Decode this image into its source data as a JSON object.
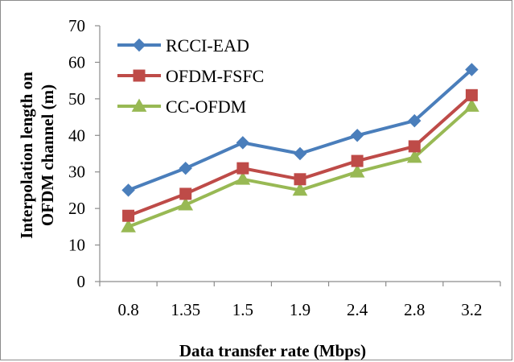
{
  "chart_data": {
    "type": "line",
    "title": "",
    "xlabel": "Data transfer rate (Mbps)",
    "ylabel_line1": "Interpolation length on",
    "ylabel_line2": "OFDM channel (m)",
    "categories": [
      "0.8",
      "1.35",
      "1.5",
      "1.9",
      "2.4",
      "2.8",
      "3.2"
    ],
    "ylim": [
      0,
      70
    ],
    "yticks": [
      0,
      10,
      20,
      30,
      40,
      50,
      60,
      70
    ],
    "grid": false,
    "legend_position": "top-left",
    "series": [
      {
        "name": "RCCI-EAD",
        "values": [
          25,
          31,
          38,
          35,
          40,
          44,
          58
        ],
        "color": "#4a7ebb",
        "marker": "diamond"
      },
      {
        "name": "OFDM-FSFC",
        "values": [
          18,
          24,
          31,
          28,
          33,
          37,
          51
        ],
        "color": "#be4b48",
        "marker": "square"
      },
      {
        "name": "CC-OFDM",
        "values": [
          15,
          21,
          28,
          25,
          30,
          34,
          48
        ],
        "color": "#98b954",
        "marker": "triangle"
      }
    ]
  }
}
